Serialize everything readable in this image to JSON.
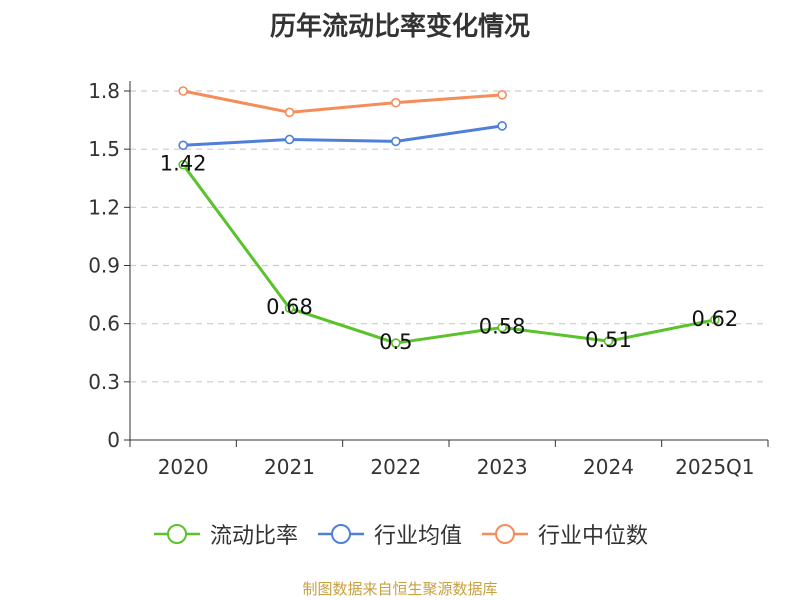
{
  "chart_data": {
    "type": "line",
    "title": "历年流动比率变化情况",
    "categories": [
      "2020",
      "2021",
      "2022",
      "2023",
      "2024",
      "2025Q1"
    ],
    "ylim": [
      0,
      1.8
    ],
    "yticks": [
      "0",
      "0.3",
      "0.6",
      "0.9",
      "1.2",
      "1.5",
      "1.8"
    ],
    "grid": true,
    "legend_position": "bottom",
    "series": [
      {
        "name": "流动比率",
        "color": "#5ac22c",
        "values": [
          1.42,
          0.68,
          0.5,
          0.58,
          0.51,
          0.62
        ],
        "labels": [
          "1.42",
          "0.68",
          "0.5",
          "0.58",
          "0.51",
          "0.62"
        ]
      },
      {
        "name": "行业均值",
        "color": "#4f80d9",
        "values": [
          1.52,
          1.55,
          1.54,
          1.62,
          null,
          null
        ]
      },
      {
        "name": "行业中位数",
        "color": "#f58c5a",
        "values": [
          1.8,
          1.69,
          1.74,
          1.78,
          null,
          null
        ]
      }
    ]
  },
  "source": "制图数据来自恒生聚源数据库"
}
